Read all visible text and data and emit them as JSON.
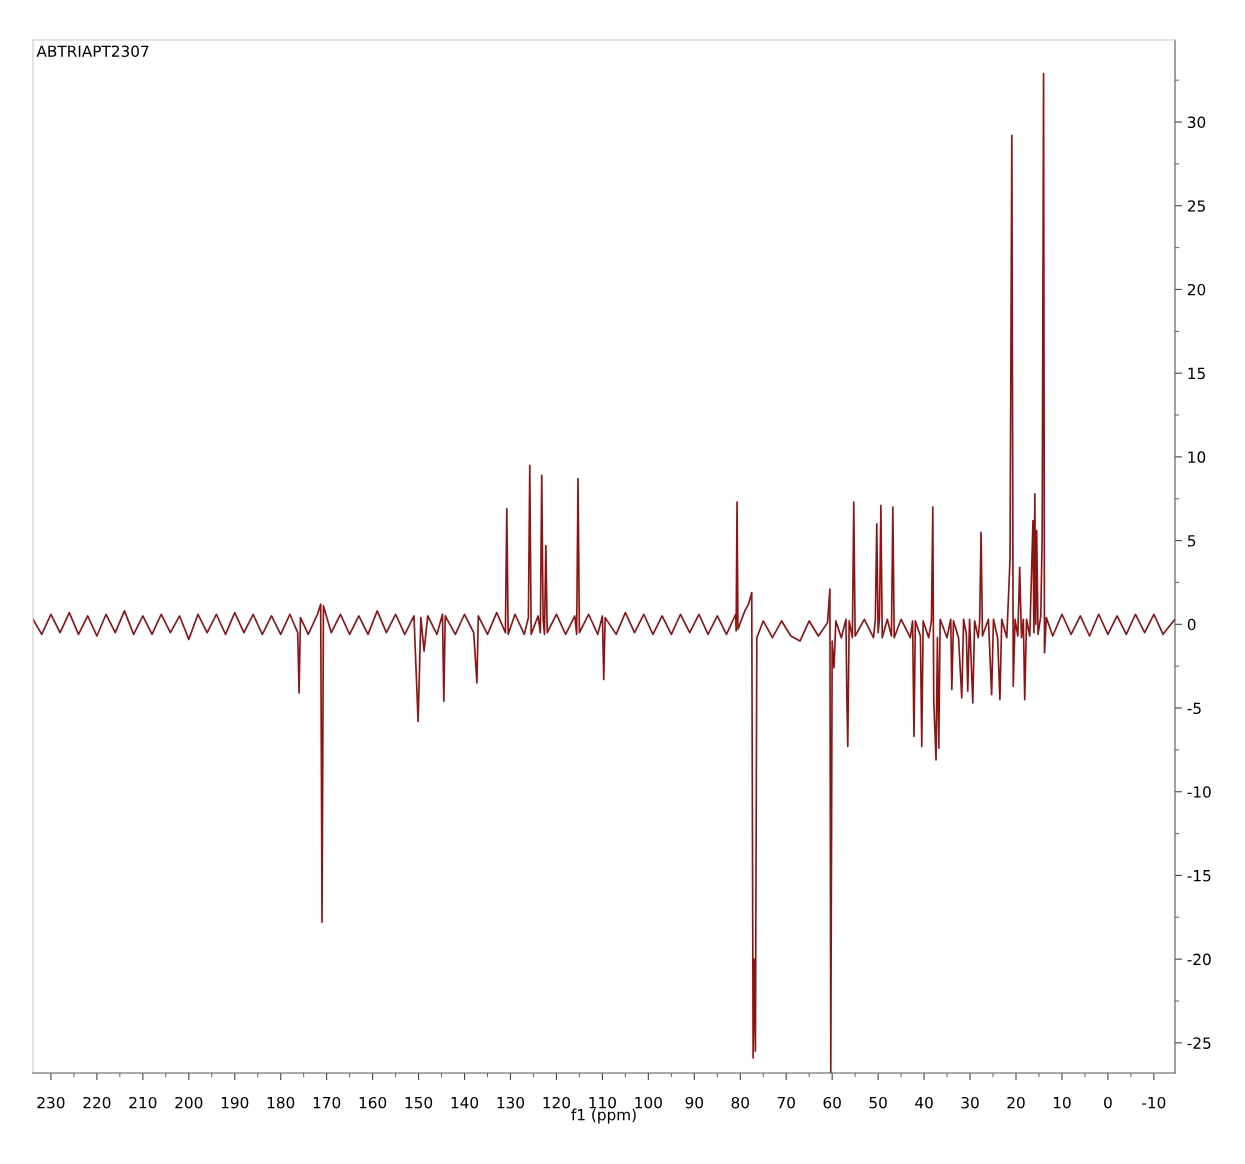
{
  "chart_data": {
    "type": "line",
    "xlabel": "f1 (ppm)",
    "annotations": [
      "ABTRIAPT2307"
    ],
    "xlim": [
      233.9,
      -14.6
    ],
    "ylim": [
      -26.8,
      34.9
    ],
    "xticks": [
      230,
      220,
      210,
      200,
      190,
      180,
      170,
      160,
      150,
      140,
      130,
      120,
      110,
      100,
      90,
      80,
      70,
      60,
      50,
      40,
      30,
      20,
      10,
      0,
      -10
    ],
    "yticks": [
      -25,
      -20,
      -15,
      -10,
      -5,
      0,
      5,
      10,
      15,
      20,
      25,
      30
    ],
    "grid": false,
    "legend": false,
    "marker": "none",
    "line_style": "solid",
    "series": [
      {
        "color": "#8b1515",
        "x": [
          233.9,
          232,
          230,
          228,
          226,
          224,
          222,
          220,
          218,
          216,
          214,
          212,
          210,
          208,
          206,
          204,
          202,
          200,
          198,
          196,
          194,
          192,
          190,
          188,
          186,
          184,
          182,
          180,
          178,
          176.3,
          176.0,
          175.7,
          174,
          172,
          171.3,
          171.0,
          170.7,
          169,
          167,
          165,
          163,
          161,
          159,
          157,
          155,
          153,
          151,
          150.1,
          149.5,
          148.8,
          148,
          146,
          144.8,
          144.5,
          144.2,
          142,
          140,
          138,
          137.3,
          137.0,
          135,
          133,
          131.1,
          130.8,
          130.5,
          129,
          127,
          126.1,
          125.8,
          125.5,
          124,
          123.5,
          123.2,
          122.9,
          122.6,
          122.3,
          122.0,
          120,
          118,
          116,
          115.6,
          115.3,
          115.0,
          113,
          111,
          110.0,
          109.7,
          109.4,
          107,
          105,
          103,
          101,
          99,
          97,
          95,
          93,
          91,
          89,
          87,
          85,
          83,
          81,
          80.9,
          80.7,
          80.5,
          79,
          78.2,
          77.5,
          77.2,
          77.0,
          76.7,
          76.4,
          75,
          73,
          71,
          69,
          67,
          65,
          63,
          61,
          60.5,
          60.3,
          60.0,
          59.6,
          59.2,
          58,
          57,
          56.8,
          56.6,
          56.3,
          55.6,
          55.3,
          55.0,
          53,
          51,
          50.6,
          50.3,
          50.0,
          49.7,
          49.4,
          49.1,
          48,
          47.1,
          46.8,
          46.5,
          45,
          43,
          42.5,
          42.2,
          41.9,
          40.8,
          40.5,
          40.2,
          39,
          38.4,
          38.1,
          37.9,
          37.4,
          37.1,
          36.8,
          36.5,
          35,
          34.2,
          33.96,
          33.6,
          32.5,
          31.8,
          31.4,
          30.8,
          30.5,
          30.1,
          29.4,
          29.0,
          28.2,
          27.9,
          27.6,
          27.3,
          26,
          25.3,
          24.9,
          24,
          23.5,
          23.1,
          22,
          21.3,
          20.9,
          20.6,
          20.2,
          19.6,
          19.2,
          18.8,
          18.4,
          18.1,
          17.7,
          17,
          16.3,
          16.1,
          15.9,
          15.7,
          15.5,
          15.2,
          14.6,
          14.3,
          14.0,
          13.8,
          13.4,
          12,
          10,
          8,
          6,
          4,
          2,
          0,
          -2,
          -4,
          -6,
          -8,
          -10,
          -12,
          -14.6
        ],
        "values": [
          0.3,
          -0.6,
          0.6,
          -0.5,
          0.7,
          -0.6,
          0.5,
          -0.7,
          0.6,
          -0.5,
          0.8,
          -0.6,
          0.5,
          -0.6,
          0.6,
          -0.5,
          0.5,
          -0.9,
          0.6,
          -0.5,
          0.6,
          -0.6,
          0.7,
          -0.5,
          0.6,
          -0.6,
          0.5,
          -0.6,
          0.6,
          -0.5,
          -4.1,
          0.4,
          -0.6,
          0.6,
          1.2,
          -17.8,
          1.1,
          -0.5,
          0.6,
          -0.6,
          0.5,
          -0.6,
          0.8,
          -0.5,
          0.6,
          -0.6,
          0.5,
          -5.8,
          0.4,
          -1.6,
          0.5,
          -0.6,
          0.6,
          -4.6,
          0.5,
          -0.6,
          0.6,
          -0.5,
          -3.5,
          0.5,
          -0.6,
          0.7,
          -0.5,
          6.9,
          -0.6,
          0.6,
          -0.6,
          0.4,
          9.5,
          -0.6,
          0.5,
          -0.5,
          8.9,
          0.3,
          -0.6,
          4.7,
          -0.5,
          0.6,
          -0.6,
          0.5,
          -0.6,
          8.7,
          -0.5,
          0.6,
          -0.6,
          0.5,
          -3.3,
          0.4,
          -0.6,
          0.7,
          -0.5,
          0.6,
          -0.6,
          0.5,
          -0.6,
          0.6,
          -0.5,
          0.6,
          -0.6,
          0.5,
          -0.6,
          0.6,
          -0.4,
          7.3,
          -0.3,
          0.8,
          1.2,
          1.9,
          -25.9,
          -20,
          -25.5,
          -0.8,
          0.2,
          -0.8,
          0.2,
          -0.7,
          -1.0,
          0.2,
          -0.7,
          0.1,
          2.1,
          -26.8,
          -1.0,
          -2.6,
          0.2,
          -0.8,
          0.3,
          -4.5,
          -7.3,
          0.2,
          -0.8,
          7.3,
          -0.7,
          0.3,
          -0.8,
          0.3,
          6.0,
          -0.5,
          0.4,
          7.1,
          -0.8,
          0.3,
          -0.7,
          7.0,
          -0.8,
          0.3,
          -0.8,
          0.2,
          -6.7,
          0.2,
          -0.7,
          -7.3,
          0.2,
          -0.8,
          0.2,
          7.0,
          -4.5,
          -8.1,
          -0.8,
          -7.4,
          0.3,
          -0.8,
          0.3,
          -3.9,
          0.2,
          -0.8,
          -4.4,
          0.3,
          -0.6,
          -4.0,
          0.3,
          -4.7,
          0.2,
          -0.8,
          0.2,
          5.5,
          -0.7,
          0.3,
          -4.2,
          0.3,
          -0.8,
          -4.5,
          0.3,
          -0.8,
          3.9,
          29.2,
          -3.7,
          0.3,
          -0.7,
          3.4,
          -0.8,
          0.3,
          -4.5,
          0.3,
          -0.7,
          6.2,
          -0.5,
          7.8,
          0.0,
          5.6,
          -0.6,
          0.5,
          5.3,
          32.9,
          -1.7,
          0.4,
          -0.7,
          0.6,
          -0.6,
          0.5,
          -0.7,
          0.6,
          -0.6,
          0.5,
          -0.6,
          0.6,
          -0.5,
          0.6,
          -0.6,
          0.3
        ]
      }
    ]
  }
}
